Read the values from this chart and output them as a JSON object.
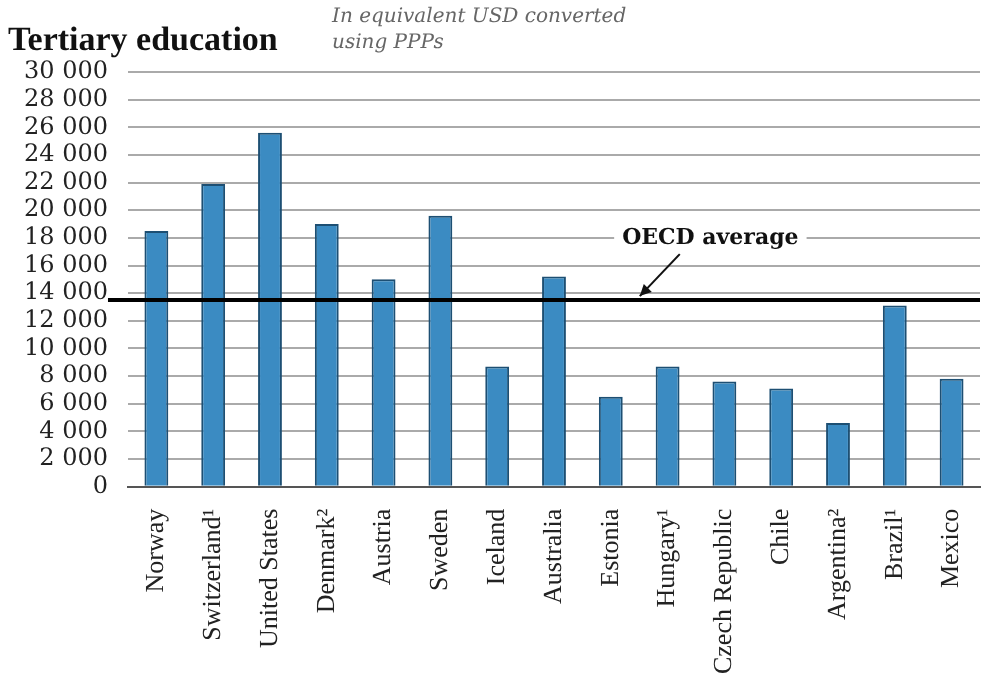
{
  "chart_data": {
    "type": "bar",
    "title": "Tertiary education",
    "subtitle": "In equivalent USD converted using PPPs",
    "categories": [
      "Norway",
      "Switzerland¹",
      "United States",
      "Denmark²",
      "Austria",
      "Sweden",
      "Iceland",
      "Australia",
      "Estonia",
      "Hungary¹",
      "Czech Republic",
      "Chile",
      "Argentina²",
      "Brazil¹",
      "Mexico"
    ],
    "values": [
      18500,
      21900,
      25600,
      19000,
      15000,
      19600,
      8700,
      15200,
      6500,
      8700,
      7600,
      7100,
      4600,
      13100,
      7800
    ],
    "color": "#3b8bc2",
    "ylim": [
      0,
      30000
    ],
    "yticks": [
      {
        "value": 0,
        "label": "0"
      },
      {
        "value": 2000,
        "label": "2 000"
      },
      {
        "value": 4000,
        "label": "4 000"
      },
      {
        "value": 6000,
        "label": "6 000"
      },
      {
        "value": 8000,
        "label": "8 000"
      },
      {
        "value": 10000,
        "label": "10 000"
      },
      {
        "value": 12000,
        "label": "12 000"
      },
      {
        "value": 14000,
        "label": "14 000"
      },
      {
        "value": 16000,
        "label": "16 000"
      },
      {
        "value": 18000,
        "label": "18 000"
      },
      {
        "value": 20000,
        "label": "20 000"
      },
      {
        "value": 22000,
        "label": "22 000"
      },
      {
        "value": 24000,
        "label": "24 000"
      },
      {
        "value": 26000,
        "label": "26 000"
      },
      {
        "value": 28000,
        "label": "28 000"
      },
      {
        "value": 30000,
        "label": "30 000"
      }
    ],
    "grid": "y",
    "legend": false,
    "ref_lines": [
      {
        "axis": "y",
        "value": 13500,
        "label": "OECD average",
        "color": "#000000"
      }
    ]
  }
}
